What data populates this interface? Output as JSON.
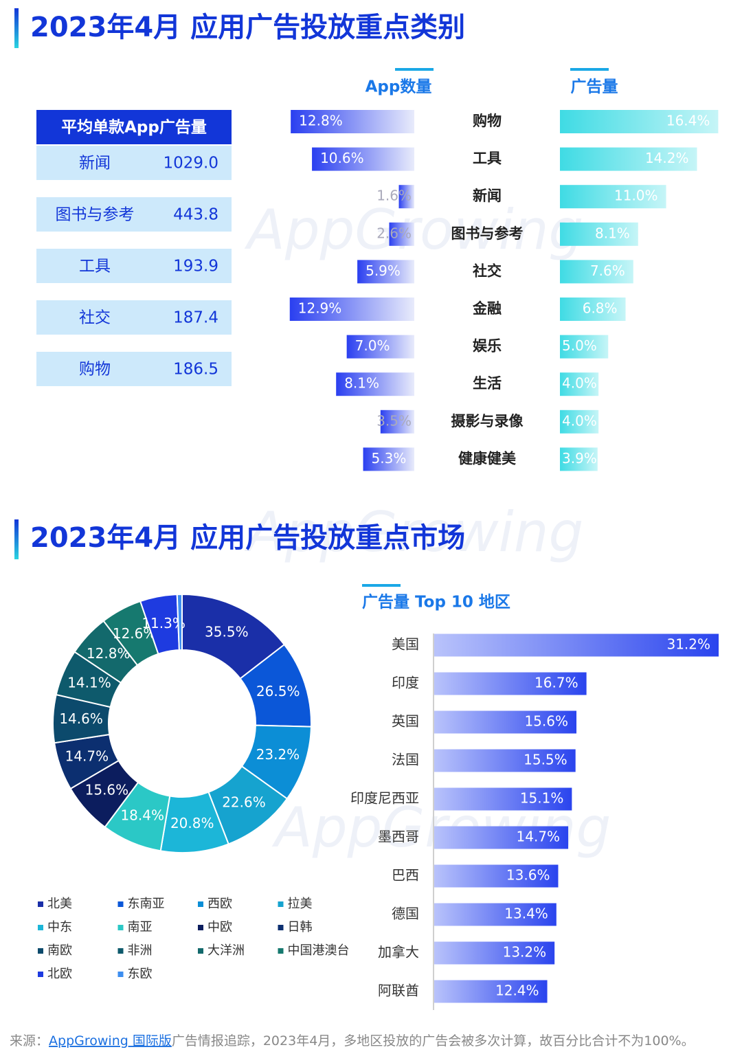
{
  "sections": [
    {
      "title": "2023年4月 应用广告投放重点类别"
    },
    {
      "title": "2023年4月 应用广告投放重点市场"
    }
  ],
  "watermark": "AppGrowing",
  "table": {
    "title": "平均单款App广告量",
    "rows": [
      [
        "新闻",
        "1029.0"
      ],
      [
        "图书与参考",
        "443.8"
      ],
      [
        "工具",
        "193.9"
      ],
      [
        "社交",
        "187.4"
      ],
      [
        "购物",
        "186.5"
      ]
    ]
  },
  "chart_data": [
    {
      "type": "diverging-bar",
      "categories": [
        "购物",
        "工具",
        "新闻",
        "图书与参考",
        "社交",
        "金融",
        "娱乐",
        "生活",
        "摄影与录像",
        "健康健美"
      ],
      "series": [
        {
          "name": "App数量",
          "colors": [
            "#2a3ff0",
            "#e8ebfb"
          ],
          "values": [
            12.8,
            10.6,
            1.6,
            2.6,
            5.9,
            12.9,
            7.0,
            8.1,
            3.5,
            5.3
          ],
          "value_labels": [
            "12.8%",
            "10.6%",
            "1.6%",
            "2.6%",
            "5.9%",
            "12.9%",
            "7.0%",
            "8.1%",
            "3.5%",
            "5.3%"
          ]
        },
        {
          "name": "广告量",
          "colors": [
            "#3fdbe4",
            "#c6f5f7"
          ],
          "values": [
            16.4,
            14.2,
            11.0,
            8.1,
            7.6,
            6.8,
            5.0,
            4.0,
            4.0,
            3.9
          ],
          "value_labels": [
            "16.4%",
            "14.2%",
            "11.0%",
            "8.1%",
            "7.6%",
            "6.8%",
            "5.0%",
            "4.0%",
            "4.0%",
            "3.9%"
          ]
        }
      ]
    },
    {
      "type": "pie",
      "categories": [
        "北美",
        "东南亚",
        "西欧",
        "拉美",
        "中东",
        "南亚",
        "中欧",
        "日韩",
        "南欧",
        "非洲",
        "大洋洲",
        "中国港澳台",
        "北欧",
        "东欧"
      ],
      "values": [
        35.5,
        26.5,
        23.2,
        22.6,
        20.8,
        18.4,
        15.6,
        14.7,
        14.6,
        14.1,
        12.8,
        12.6,
        11.3,
        1.5
      ],
      "value_labels": [
        "35.5%",
        "26.5%",
        "23.2%",
        "22.6%",
        "20.8%",
        "18.4%",
        "15.6%",
        "14.7%",
        "14.6%",
        "14.1%",
        "12.8%",
        "12.6%",
        "11.3%",
        null
      ],
      "colors": [
        "#1a2fa8",
        "#0b57d8",
        "#0c8ed6",
        "#16a3cf",
        "#1cb6d8",
        "#2bc8c6",
        "#0c1d5e",
        "#0c2f70",
        "#0c4a6c",
        "#0e5a6c",
        "#13696c",
        "#16796f",
        "#1e3be0",
        "#3d8ef0"
      ]
    },
    {
      "type": "bar",
      "title": "广告量 Top 10 地区",
      "categories": [
        "美国",
        "印度",
        "英国",
        "法国",
        "印度尼西亚",
        "墨西哥",
        "巴西",
        "德国",
        "加拿大",
        "阿联酋"
      ],
      "values": [
        31.2,
        16.7,
        15.6,
        15.5,
        15.1,
        14.7,
        13.6,
        13.4,
        13.2,
        12.4
      ],
      "value_labels": [
        "31.2%",
        "16.7%",
        "15.6%",
        "15.5%",
        "15.1%",
        "14.7%",
        "13.6%",
        "13.4%",
        "13.2%",
        "12.4%"
      ],
      "colors": [
        "#b9c3fb",
        "#2a44ee"
      ]
    }
  ],
  "footer": {
    "prefix": "来源：",
    "link": "AppGrowing 国际版",
    "text": "广告情报追踪，2023年4月，多地区投放的广告会被多次计算，故百分比合计不为100%。"
  }
}
